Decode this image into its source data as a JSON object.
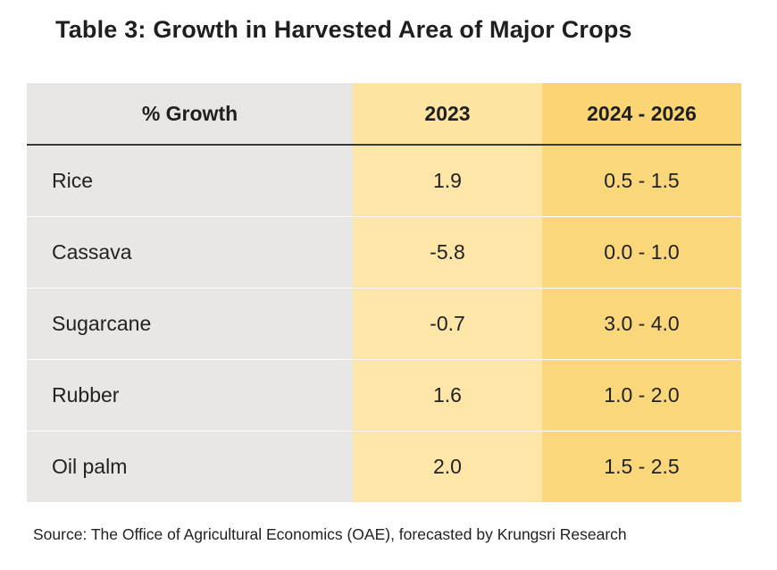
{
  "title": "Table 3: Growth in Harvested Area of Major Crops",
  "table": {
    "headers": [
      "% Growth",
      "2023",
      "2024 - 2026"
    ],
    "rows": [
      {
        "crop": "Rice",
        "y2023": "1.9",
        "y2024_2026": "0.5 - 1.5"
      },
      {
        "crop": "Cassava",
        "y2023": "-5.8",
        "y2024_2026": "0.0 - 1.0"
      },
      {
        "crop": "Sugarcane",
        "y2023": "-0.7",
        "y2024_2026": "3.0 - 4.0"
      },
      {
        "crop": "Rubber",
        "y2023": "1.6",
        "y2024_2026": "1.0 - 2.0"
      },
      {
        "crop": "Oil palm",
        "y2023": "2.0",
        "y2024_2026": "1.5 - 2.5"
      }
    ]
  },
  "source": "Source: The Office of Agricultural Economics (OAE), forecasted by  Krungsri Research",
  "colors": {
    "name_column": "#e9e7e5",
    "col_2023": "#fde6a8",
    "col_2024_2026": "#fbd77c",
    "header_rule": "#3a3a3a"
  }
}
